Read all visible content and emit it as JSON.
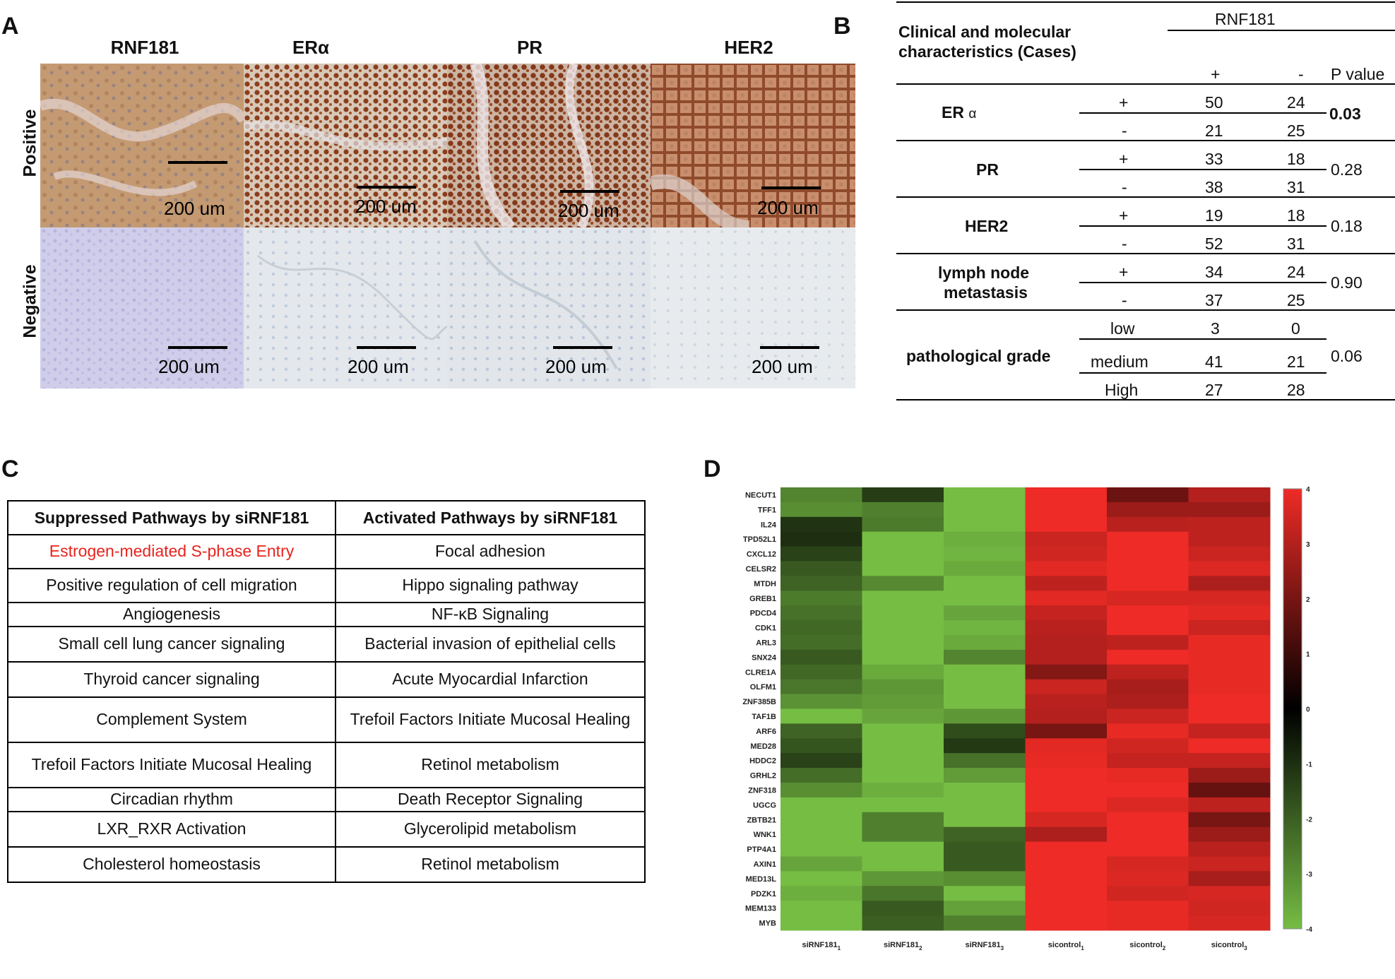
{
  "panels": {
    "a": "A",
    "b": "B",
    "c": "C",
    "d": "D"
  },
  "panel_a": {
    "columns": [
      "RNF181",
      "ERα",
      "PR",
      "HER2"
    ],
    "rows": [
      "Positive",
      "Negative"
    ],
    "scale_label": "200 um"
  },
  "panel_b": {
    "header_characteristic": "Clinical and molecular characteristics (Cases)",
    "header_char_line1": "Clinical and molecular",
    "header_char_line2": "characteristics (Cases)",
    "header_rnf": "RNF181",
    "header_plus": "+",
    "header_minus": "-",
    "header_p": "P value",
    "groups": [
      {
        "name": "ER",
        "suffix": "α",
        "rows": [
          {
            "level": "+",
            "pos": "50",
            "neg": "24"
          },
          {
            "level": "-",
            "pos": "21",
            "neg": "25"
          }
        ],
        "p": "0.03",
        "p_bold": true
      },
      {
        "name": "PR",
        "rows": [
          {
            "level": "+",
            "pos": "33",
            "neg": "18"
          },
          {
            "level": "-",
            "pos": "38",
            "neg": "31"
          }
        ],
        "p": "0.28"
      },
      {
        "name": "HER2",
        "rows": [
          {
            "level": "+",
            "pos": "19",
            "neg": "18"
          },
          {
            "level": "-",
            "pos": "52",
            "neg": "31"
          }
        ],
        "p": "0.18"
      },
      {
        "name_line1": "lymph node",
        "name_line2": "metastasis",
        "rows": [
          {
            "level": "+",
            "pos": "34",
            "neg": "24"
          },
          {
            "level": "-",
            "pos": "37",
            "neg": "25"
          }
        ],
        "p": "0.90"
      },
      {
        "name": "pathological grade",
        "rows": [
          {
            "level": "low",
            "pos": "3",
            "neg": "0"
          },
          {
            "level": "medium",
            "pos": "41",
            "neg": "21"
          },
          {
            "level": "High",
            "pos": "27",
            "neg": "28"
          }
        ],
        "p": "0.06"
      }
    ]
  },
  "panel_c": {
    "headers": [
      "Suppressed Pathways by siRNF181",
      "Activated Pathways by siRNF181"
    ],
    "rows": [
      [
        "Estrogen-mediated S-phase Entry",
        "Focal adhesion"
      ],
      [
        "Positive regulation of cell migration",
        "Hippo signaling pathway"
      ],
      [
        "Angiogenesis",
        "NF-κB Signaling"
      ],
      [
        "Small cell lung cancer signaling",
        "Bacterial invasion of epithelial cells"
      ],
      [
        "Thyroid cancer signaling",
        "Acute Myocardial Infarction"
      ],
      [
        "Complement System",
        "Trefoil Factors Initiate  Mucosal Healing"
      ],
      [
        "Trefoil Factors Initiate  Mucosal Healing",
        "Retinol metabolism"
      ],
      [
        "Circadian rhythm",
        "Death Receptor Signaling"
      ],
      [
        "LXR_RXR Activation",
        "Glycerolipid metabolism"
      ],
      [
        "Cholesterol homeostasis",
        "Retinol metabolism"
      ]
    ],
    "highlight_color": "#e8231e"
  },
  "chart_data": {
    "type": "heatmap",
    "title": "",
    "genes": [
      "NECUT1",
      "TFF1",
      "IL24",
      "TPD52L1",
      "CXCL12",
      "CELSR2",
      "MTDH",
      "GREB1",
      "PDCD4",
      "CDK1",
      "ARL3",
      "SNX24",
      "CLRE1A",
      "OLFM1",
      "ZNF385B",
      "TAF1B",
      "ARF6",
      "MED28",
      "HDDC2",
      "GRHL2",
      "ZNF318",
      "UGCG",
      "ZBTB21",
      "WNK1",
      "PTP4A1",
      "AXIN1",
      "MED13L",
      "PDZK1",
      "MEM133",
      "MYB"
    ],
    "samples": [
      {
        "base": "siRNF181",
        "sub": "1"
      },
      {
        "base": "siRNF181",
        "sub": "2"
      },
      {
        "base": "siRNF181",
        "sub": "3"
      },
      {
        "base": "sicontrol",
        "sub": "1"
      },
      {
        "base": "sicontrol",
        "sub": "2"
      },
      {
        "base": "sicontrol",
        "sub": "3"
      }
    ],
    "values": [
      [
        -2.8,
        -1.3,
        -4.0,
        4.0,
        1.8,
        3.0
      ],
      [
        -3.0,
        -2.7,
        -4.0,
        4.0,
        2.6,
        2.6
      ],
      [
        -1.1,
        -2.6,
        -4.0,
        4.0,
        3.1,
        3.2
      ],
      [
        -1.0,
        -4.0,
        -3.7,
        3.4,
        4.0,
        3.2
      ],
      [
        -1.4,
        -4.0,
        -3.8,
        3.5,
        4.0,
        3.4
      ],
      [
        -1.9,
        -4.0,
        -3.6,
        3.8,
        4.0,
        3.7
      ],
      [
        -2.1,
        -2.9,
        -4.0,
        3.2,
        4.0,
        2.9
      ],
      [
        -2.6,
        -4.0,
        -4.0,
        3.8,
        3.6,
        3.6
      ],
      [
        -2.4,
        -4.0,
        -3.5,
        3.3,
        4.0,
        3.8
      ],
      [
        -2.2,
        -4.0,
        -3.8,
        3.1,
        4.0,
        3.4
      ],
      [
        -2.3,
        -4.0,
        -3.6,
        3.0,
        3.2,
        3.9
      ],
      [
        -1.9,
        -4.0,
        -2.8,
        3.0,
        4.0,
        3.9
      ],
      [
        -2.2,
        -3.6,
        -4.0,
        2.2,
        3.2,
        3.9
      ],
      [
        -2.5,
        -3.2,
        -4.0,
        3.4,
        2.8,
        3.9
      ],
      [
        -3.1,
        -3.3,
        -4.0,
        3.1,
        2.9,
        4.0
      ],
      [
        -4.0,
        -3.5,
        -3.2,
        3.0,
        3.4,
        4.0
      ],
      [
        -2.1,
        -4.0,
        -1.6,
        2.0,
        3.9,
        3.3
      ],
      [
        -1.8,
        -4.0,
        -1.2,
        3.8,
        3.5,
        4.0
      ],
      [
        -1.4,
        -4.0,
        -2.4,
        3.9,
        3.3,
        3.3
      ],
      [
        -2.3,
        -4.0,
        -3.3,
        4.0,
        3.9,
        2.6
      ],
      [
        -3.0,
        -3.7,
        -4.0,
        4.0,
        4.0,
        1.7
      ],
      [
        -4.0,
        -4.0,
        -4.0,
        4.0,
        3.7,
        3.2
      ],
      [
        -4.0,
        -2.7,
        -4.0,
        3.6,
        4.0,
        2.0
      ],
      [
        -4.0,
        -2.7,
        -2.1,
        2.9,
        4.0,
        2.6
      ],
      [
        -4.0,
        -4.0,
        -1.9,
        4.0,
        4.0,
        3.1
      ],
      [
        -3.5,
        -4.0,
        -1.9,
        4.0,
        3.6,
        3.4
      ],
      [
        -4.0,
        -3.2,
        -3.0,
        4.0,
        3.7,
        2.8
      ],
      [
        -3.7,
        -2.5,
        -4.0,
        4.0,
        3.5,
        3.6
      ],
      [
        -4.0,
        -1.9,
        -3.4,
        4.0,
        3.9,
        3.5
      ],
      [
        -4.0,
        -2.0,
        -2.7,
        4.0,
        3.9,
        3.6
      ]
    ],
    "colorbar_ticks": [
      "4",
      "3",
      "2",
      "1",
      "0",
      "-1",
      "-2",
      "-3",
      "-4"
    ],
    "vmin": -4,
    "vmax": 4,
    "colors": {
      "low": "#76bd44",
      "mid": "#000000",
      "high": "#ee2b26"
    }
  }
}
